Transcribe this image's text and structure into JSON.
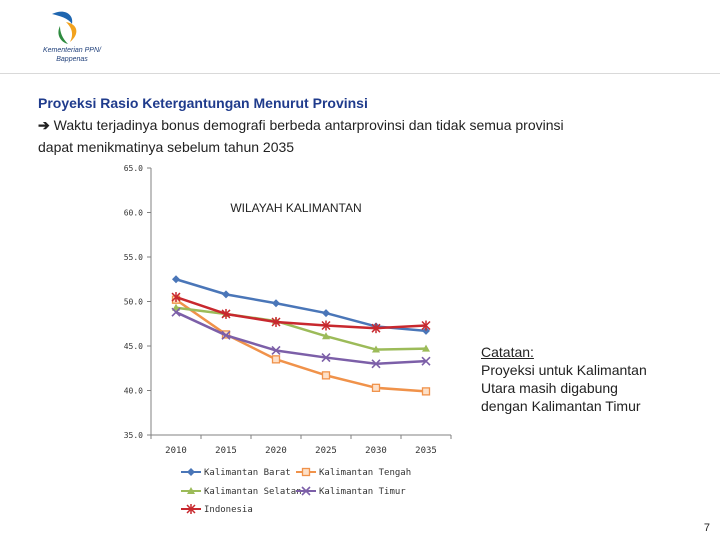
{
  "logo": {
    "org_line1": "Kementerian PPN/",
    "org_line2": "Bappenas"
  },
  "heading": "Proyeksi Rasio Ketergantungan Menurut Provinsi",
  "body_line1": "Waktu terjadinya bonus demografi berbeda antarprovinsi dan tidak semua provinsi",
  "body_line2": "dapat menikmatinya sebelum tahun 2035",
  "note": {
    "title": "Catatan:",
    "line1": "Proyeksi untuk Kalimantan",
    "line2": "Utara masih digabung",
    "line3": "dengan Kalimantan Timur"
  },
  "page_number": "7",
  "chart_data": {
    "type": "line",
    "title": "WILAYAH KALIMANTAN",
    "xlabel": "",
    "ylabel": "",
    "categories": [
      "2010",
      "2015",
      "2020",
      "2025",
      "2030",
      "2035"
    ],
    "ylim": [
      35.0,
      65.0
    ],
    "yticks": [
      "35.0",
      "40.0",
      "45.0",
      "50.0",
      "55.0",
      "60.0",
      "65.0"
    ],
    "ytick_values": [
      35,
      40,
      45,
      50,
      55,
      60,
      65
    ],
    "series": [
      {
        "name": "Kalimantan Barat",
        "color": "#4a76b8",
        "marker": "diamond",
        "values": [
          52.5,
          50.8,
          49.8,
          48.7,
          47.2,
          46.7
        ]
      },
      {
        "name": "Kalimantan Tengah",
        "color": "#f0924a",
        "marker": "square",
        "values": [
          50.2,
          46.3,
          43.5,
          41.7,
          40.3,
          39.9
        ]
      },
      {
        "name": "Kalimantan Selatan",
        "color": "#9cbb59",
        "marker": "triangle",
        "values": [
          49.3,
          48.6,
          47.8,
          46.1,
          44.6,
          44.7
        ]
      },
      {
        "name": "Kalimantan Timur",
        "color": "#7c5fa8",
        "marker": "x",
        "values": [
          48.8,
          46.2,
          44.5,
          43.7,
          43.0,
          43.3
        ]
      },
      {
        "name": "Indonesia",
        "color": "#c8282e",
        "marker": "star",
        "values": [
          50.5,
          48.6,
          47.7,
          47.3,
          47.0,
          47.3
        ]
      }
    ]
  }
}
